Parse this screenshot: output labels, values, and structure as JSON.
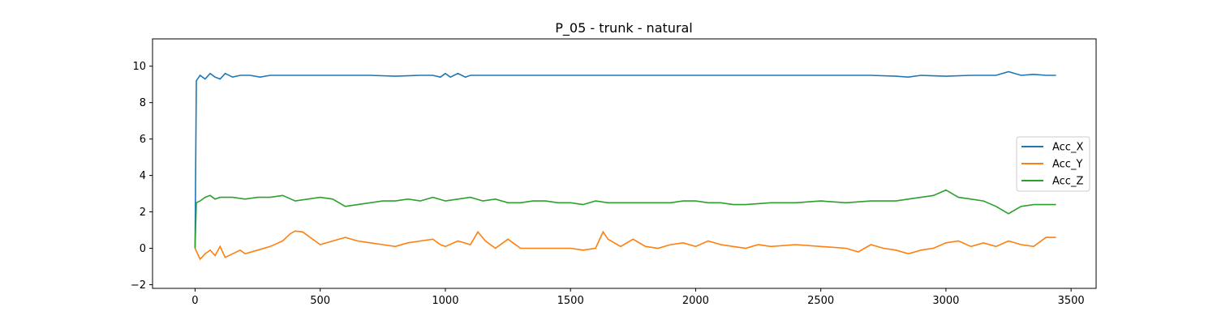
{
  "chart_data": {
    "type": "line",
    "title": "P_05 - trunk - natural",
    "xlabel": "",
    "ylabel": "",
    "xlim": [
      -170,
      3600
    ],
    "ylim": [
      -2.2,
      11.5
    ],
    "xticks": [
      0,
      500,
      1000,
      1500,
      2000,
      2500,
      3000,
      3500
    ],
    "yticks": [
      -2,
      0,
      2,
      4,
      6,
      8,
      10
    ],
    "xtick_labels": [
      "0",
      "500",
      "1000",
      "1500",
      "2000",
      "2500",
      "3000",
      "3500"
    ],
    "ytick_labels": [
      "−2",
      "0",
      "2",
      "4",
      "6",
      "8",
      "10"
    ],
    "grid": false,
    "legend_position": "center-right",
    "series": [
      {
        "name": "Acc_X",
        "color": "#1f77b4",
        "points": [
          [
            0,
            0
          ],
          [
            5,
            9.2
          ],
          [
            20,
            9.5
          ],
          [
            40,
            9.3
          ],
          [
            60,
            9.6
          ],
          [
            80,
            9.4
          ],
          [
            100,
            9.3
          ],
          [
            120,
            9.6
          ],
          [
            150,
            9.4
          ],
          [
            180,
            9.5
          ],
          [
            220,
            9.5
          ],
          [
            260,
            9.4
          ],
          [
            300,
            9.5
          ],
          [
            400,
            9.5
          ],
          [
            500,
            9.5
          ],
          [
            600,
            9.5
          ],
          [
            700,
            9.5
          ],
          [
            800,
            9.45
          ],
          [
            900,
            9.5
          ],
          [
            950,
            9.5
          ],
          [
            980,
            9.4
          ],
          [
            1000,
            9.6
          ],
          [
            1020,
            9.4
          ],
          [
            1050,
            9.6
          ],
          [
            1080,
            9.4
          ],
          [
            1100,
            9.5
          ],
          [
            1200,
            9.5
          ],
          [
            1300,
            9.5
          ],
          [
            1400,
            9.5
          ],
          [
            1500,
            9.5
          ],
          [
            1600,
            9.5
          ],
          [
            1700,
            9.5
          ],
          [
            1800,
            9.5
          ],
          [
            1900,
            9.5
          ],
          [
            2000,
            9.5
          ],
          [
            2100,
            9.5
          ],
          [
            2200,
            9.5
          ],
          [
            2300,
            9.5
          ],
          [
            2400,
            9.5
          ],
          [
            2500,
            9.5
          ],
          [
            2600,
            9.5
          ],
          [
            2700,
            9.5
          ],
          [
            2800,
            9.45
          ],
          [
            2850,
            9.4
          ],
          [
            2900,
            9.5
          ],
          [
            3000,
            9.45
          ],
          [
            3100,
            9.5
          ],
          [
            3200,
            9.5
          ],
          [
            3250,
            9.7
          ],
          [
            3300,
            9.5
          ],
          [
            3350,
            9.55
          ],
          [
            3400,
            9.5
          ],
          [
            3440,
            9.5
          ]
        ]
      },
      {
        "name": "Acc_Y",
        "color": "#ff7f0e",
        "points": [
          [
            0,
            0
          ],
          [
            20,
            -0.6
          ],
          [
            40,
            -0.3
          ],
          [
            60,
            -0.1
          ],
          [
            80,
            -0.4
          ],
          [
            100,
            0.1
          ],
          [
            120,
            -0.5
          ],
          [
            150,
            -0.3
          ],
          [
            180,
            -0.1
          ],
          [
            200,
            -0.3
          ],
          [
            250,
            -0.1
          ],
          [
            300,
            0.1
          ],
          [
            350,
            0.4
          ],
          [
            380,
            0.8
          ],
          [
            400,
            0.95
          ],
          [
            430,
            0.9
          ],
          [
            460,
            0.6
          ],
          [
            500,
            0.2
          ],
          [
            550,
            0.4
          ],
          [
            600,
            0.6
          ],
          [
            650,
            0.4
          ],
          [
            700,
            0.3
          ],
          [
            750,
            0.2
          ],
          [
            800,
            0.1
          ],
          [
            850,
            0.3
          ],
          [
            900,
            0.4
          ],
          [
            950,
            0.5
          ],
          [
            980,
            0.2
          ],
          [
            1000,
            0.1
          ],
          [
            1050,
            0.4
          ],
          [
            1100,
            0.2
          ],
          [
            1130,
            0.9
          ],
          [
            1160,
            0.4
          ],
          [
            1200,
            0.0
          ],
          [
            1250,
            0.5
          ],
          [
            1300,
            0.0
          ],
          [
            1400,
            0.0
          ],
          [
            1450,
            0.0
          ],
          [
            1500,
            0.0
          ],
          [
            1550,
            -0.1
          ],
          [
            1600,
            0.0
          ],
          [
            1630,
            0.9
          ],
          [
            1650,
            0.5
          ],
          [
            1700,
            0.1
          ],
          [
            1750,
            0.5
          ],
          [
            1800,
            0.1
          ],
          [
            1850,
            0.0
          ],
          [
            1900,
            0.2
          ],
          [
            1950,
            0.3
          ],
          [
            2000,
            0.1
          ],
          [
            2050,
            0.4
          ],
          [
            2100,
            0.2
          ],
          [
            2150,
            0.1
          ],
          [
            2200,
            0.0
          ],
          [
            2250,
            0.2
          ],
          [
            2300,
            0.1
          ],
          [
            2400,
            0.2
          ],
          [
            2500,
            0.1
          ],
          [
            2600,
            0.0
          ],
          [
            2650,
            -0.2
          ],
          [
            2700,
            0.2
          ],
          [
            2750,
            0.0
          ],
          [
            2800,
            -0.1
          ],
          [
            2850,
            -0.3
          ],
          [
            2900,
            -0.1
          ],
          [
            2950,
            0.0
          ],
          [
            3000,
            0.3
          ],
          [
            3050,
            0.4
          ],
          [
            3100,
            0.1
          ],
          [
            3150,
            0.3
          ],
          [
            3200,
            0.1
          ],
          [
            3250,
            0.4
          ],
          [
            3300,
            0.2
          ],
          [
            3350,
            0.1
          ],
          [
            3400,
            0.6
          ],
          [
            3440,
            0.6
          ]
        ]
      },
      {
        "name": "Acc_Z",
        "color": "#2ca02c",
        "points": [
          [
            0,
            0
          ],
          [
            5,
            2.5
          ],
          [
            20,
            2.6
          ],
          [
            40,
            2.8
          ],
          [
            60,
            2.9
          ],
          [
            80,
            2.7
          ],
          [
            100,
            2.8
          ],
          [
            150,
            2.8
          ],
          [
            200,
            2.7
          ],
          [
            250,
            2.8
          ],
          [
            300,
            2.8
          ],
          [
            350,
            2.9
          ],
          [
            400,
            2.6
          ],
          [
            450,
            2.7
          ],
          [
            500,
            2.8
          ],
          [
            550,
            2.7
          ],
          [
            600,
            2.3
          ],
          [
            650,
            2.4
          ],
          [
            700,
            2.5
          ],
          [
            750,
            2.6
          ],
          [
            800,
            2.6
          ],
          [
            850,
            2.7
          ],
          [
            900,
            2.6
          ],
          [
            950,
            2.8
          ],
          [
            1000,
            2.6
          ],
          [
            1050,
            2.7
          ],
          [
            1100,
            2.8
          ],
          [
            1150,
            2.6
          ],
          [
            1200,
            2.7
          ],
          [
            1250,
            2.5
          ],
          [
            1300,
            2.5
          ],
          [
            1350,
            2.6
          ],
          [
            1400,
            2.6
          ],
          [
            1450,
            2.5
          ],
          [
            1500,
            2.5
          ],
          [
            1550,
            2.4
          ],
          [
            1600,
            2.6
          ],
          [
            1650,
            2.5
          ],
          [
            1700,
            2.5
          ],
          [
            1800,
            2.5
          ],
          [
            1900,
            2.5
          ],
          [
            1950,
            2.6
          ],
          [
            2000,
            2.6
          ],
          [
            2050,
            2.5
          ],
          [
            2100,
            2.5
          ],
          [
            2150,
            2.4
          ],
          [
            2200,
            2.4
          ],
          [
            2300,
            2.5
          ],
          [
            2400,
            2.5
          ],
          [
            2500,
            2.6
          ],
          [
            2600,
            2.5
          ],
          [
            2700,
            2.6
          ],
          [
            2800,
            2.6
          ],
          [
            2850,
            2.7
          ],
          [
            2900,
            2.8
          ],
          [
            2950,
            2.9
          ],
          [
            3000,
            3.2
          ],
          [
            3050,
            2.8
          ],
          [
            3100,
            2.7
          ],
          [
            3150,
            2.6
          ],
          [
            3200,
            2.3
          ],
          [
            3250,
            1.9
          ],
          [
            3300,
            2.3
          ],
          [
            3350,
            2.4
          ],
          [
            3400,
            2.4
          ],
          [
            3440,
            2.4
          ]
        ]
      }
    ]
  }
}
